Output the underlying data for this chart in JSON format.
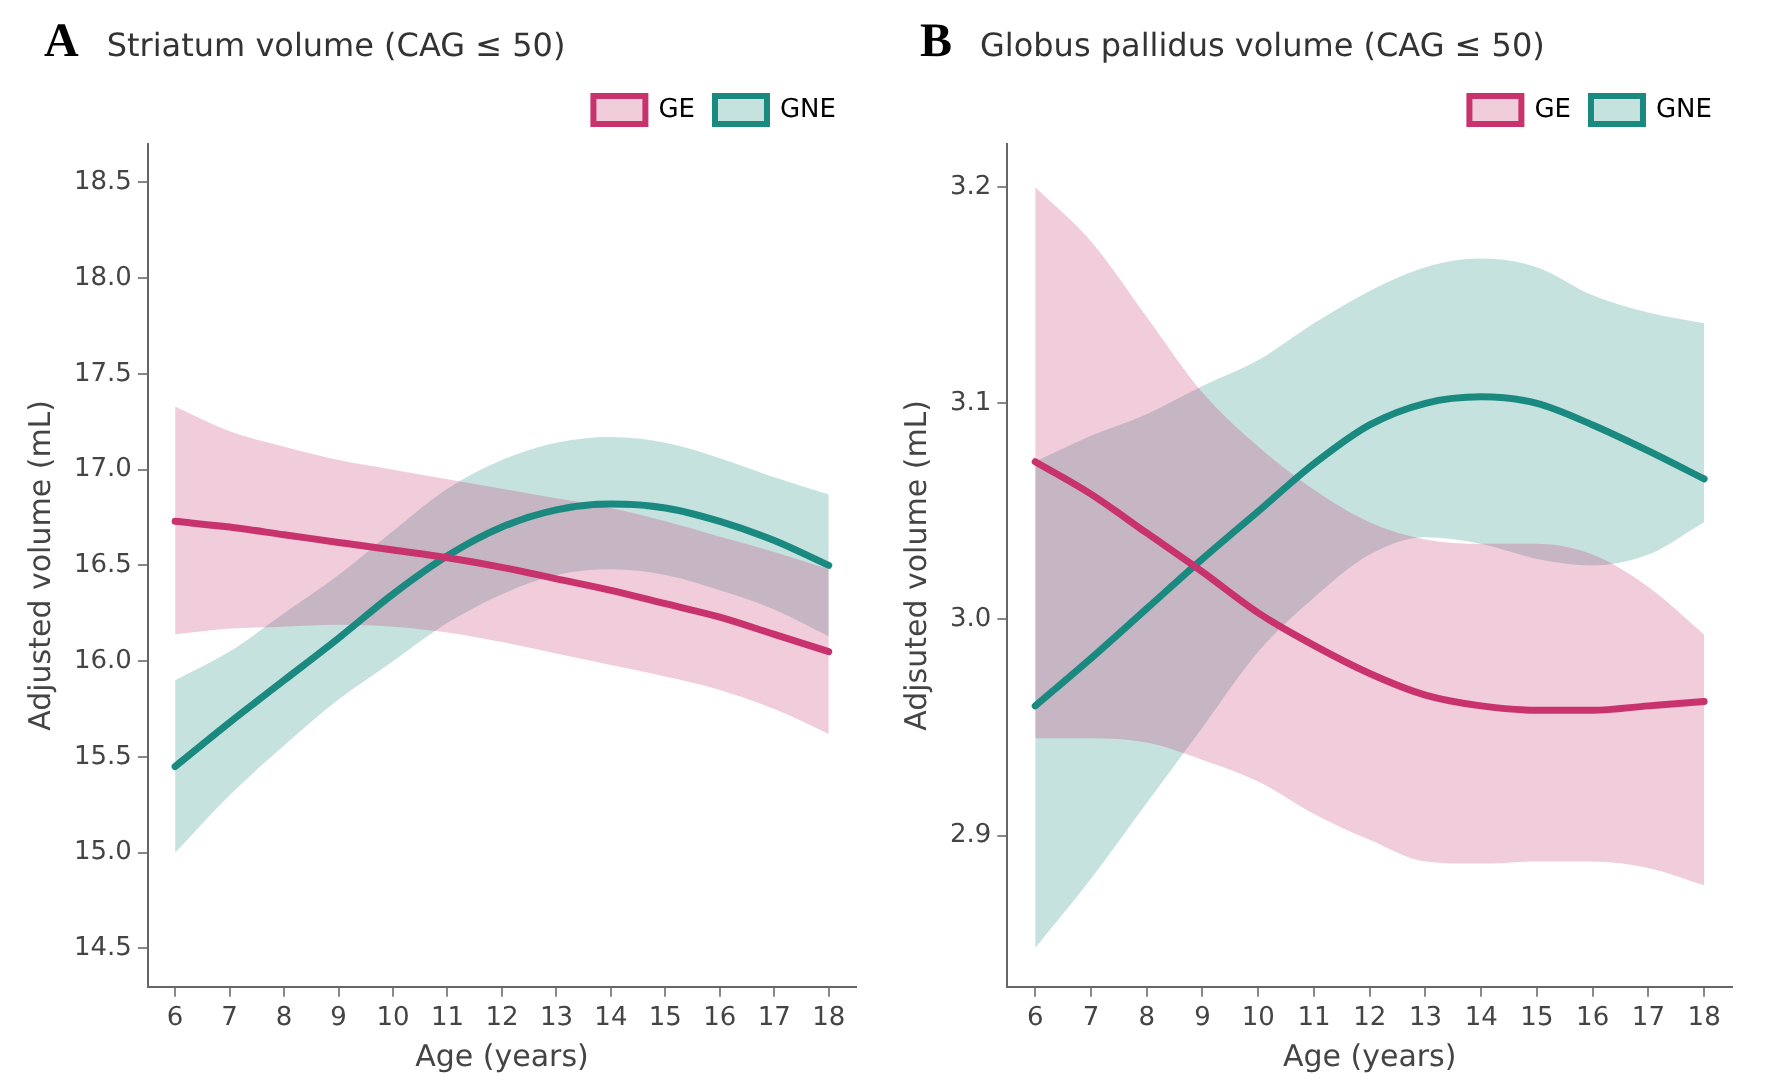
{
  "chart_data": [
    {
      "type": "line",
      "title": "Striatum volume (CAG ≤ 50)",
      "annotations": [
        "A"
      ],
      "xlabel": "Age (years)",
      "ylabel": "Adjusted volume (mL)",
      "x": [
        6,
        7,
        8,
        9,
        10,
        11,
        12,
        13,
        14,
        15,
        16,
        17,
        18
      ],
      "series": [
        {
          "name": "GE",
          "color": "#c8336e",
          "values": [
            16.73,
            16.7,
            16.66,
            16.62,
            16.58,
            16.54,
            16.49,
            16.43,
            16.37,
            16.3,
            16.23,
            16.14,
            16.05
          ],
          "lower": [
            16.14,
            16.17,
            16.18,
            16.19,
            16.18,
            16.15,
            16.1,
            16.04,
            15.98,
            15.92,
            15.85,
            15.75,
            15.62
          ],
          "upper": [
            17.33,
            17.2,
            17.12,
            17.05,
            17.0,
            16.95,
            16.9,
            16.85,
            16.8,
            16.73,
            16.65,
            16.57,
            16.48
          ]
        },
        {
          "name": "GNE",
          "color": "#1a8a80",
          "values": [
            15.45,
            15.68,
            15.9,
            16.12,
            16.35,
            16.55,
            16.7,
            16.79,
            16.82,
            16.8,
            16.73,
            16.63,
            16.5
          ],
          "lower": [
            15.0,
            15.3,
            15.56,
            15.8,
            16.0,
            16.2,
            16.35,
            16.45,
            16.48,
            16.45,
            16.37,
            16.27,
            16.13
          ],
          "upper": [
            15.9,
            16.05,
            16.25,
            16.45,
            16.68,
            16.9,
            17.05,
            17.14,
            17.17,
            17.14,
            17.06,
            16.96,
            16.87
          ]
        }
      ],
      "xlim": [
        5.5,
        18.5
      ],
      "xticks": [
        6,
        7,
        8,
        9,
        10,
        11,
        12,
        13,
        14,
        15,
        16,
        17,
        18
      ],
      "ylim": [
        14.3,
        18.7
      ],
      "yticks": [
        {
          "value": 14.5,
          "label": "14.5"
        },
        {
          "value": 15,
          "label": "15.0"
        },
        {
          "value": 15.5,
          "label": "15.5"
        },
        {
          "value": 16,
          "label": "16.0"
        },
        {
          "value": 16.5,
          "label": "16.5"
        },
        {
          "value": 17,
          "label": "17.0"
        },
        {
          "value": 17.5,
          "label": "17.5"
        },
        {
          "value": 18,
          "label": "18.0"
        },
        {
          "value": 18.5,
          "label": "18.5"
        }
      ],
      "grid": false,
      "legend": "top right",
      "marker": "none",
      "line_style": "solid"
    },
    {
      "type": "line",
      "title": "Globus pallidus volume (CAG ≤ 50)",
      "annotations": [
        "B"
      ],
      "xlabel": "Age (years)",
      "ylabel": "Adjsuted volume (mL)",
      "x": [
        6,
        7,
        8,
        9,
        10,
        11,
        12,
        13,
        14,
        15,
        16,
        17,
        18
      ],
      "series": [
        {
          "name": "GE",
          "color": "#c8336e",
          "values": [
            3.073,
            3.058,
            3.04,
            3.022,
            3.003,
            2.988,
            2.975,
            2.965,
            2.96,
            2.958,
            2.958,
            2.96,
            2.962
          ],
          "lower": [
            2.945,
            2.945,
            2.943,
            2.935,
            2.925,
            2.91,
            2.898,
            2.888,
            2.887,
            2.888,
            2.888,
            2.885,
            2.877
          ],
          "upper": [
            3.2,
            3.175,
            3.14,
            3.105,
            3.08,
            3.06,
            3.045,
            3.037,
            3.035,
            3.035,
            3.03,
            3.015,
            2.993
          ]
        },
        {
          "name": "GNE",
          "color": "#1a8a80",
          "values": [
            2.96,
            2.982,
            3.005,
            3.028,
            3.05,
            3.072,
            3.09,
            3.1,
            3.103,
            3.1,
            3.09,
            3.078,
            3.065
          ],
          "lower": [
            2.848,
            2.88,
            2.915,
            2.95,
            2.985,
            3.01,
            3.03,
            3.038,
            3.035,
            3.028,
            3.025,
            3.03,
            3.045
          ],
          "upper": [
            3.073,
            3.085,
            3.095,
            3.108,
            3.12,
            3.137,
            3.152,
            3.163,
            3.167,
            3.163,
            3.15,
            3.142,
            3.137
          ]
        }
      ],
      "xlim": [
        5.5,
        18.5
      ],
      "xticks": [
        6,
        7,
        8,
        9,
        10,
        11,
        12,
        13,
        14,
        15,
        16,
        17,
        18
      ],
      "ylim": [
        2.83,
        3.22
      ],
      "yticks": [
        2.9,
        {
          "value": 3.0,
          "label": "3.0"
        },
        3.1,
        3.2
      ],
      "grid": false,
      "legend": "top right",
      "marker": "none",
      "line_style": "solid"
    }
  ]
}
